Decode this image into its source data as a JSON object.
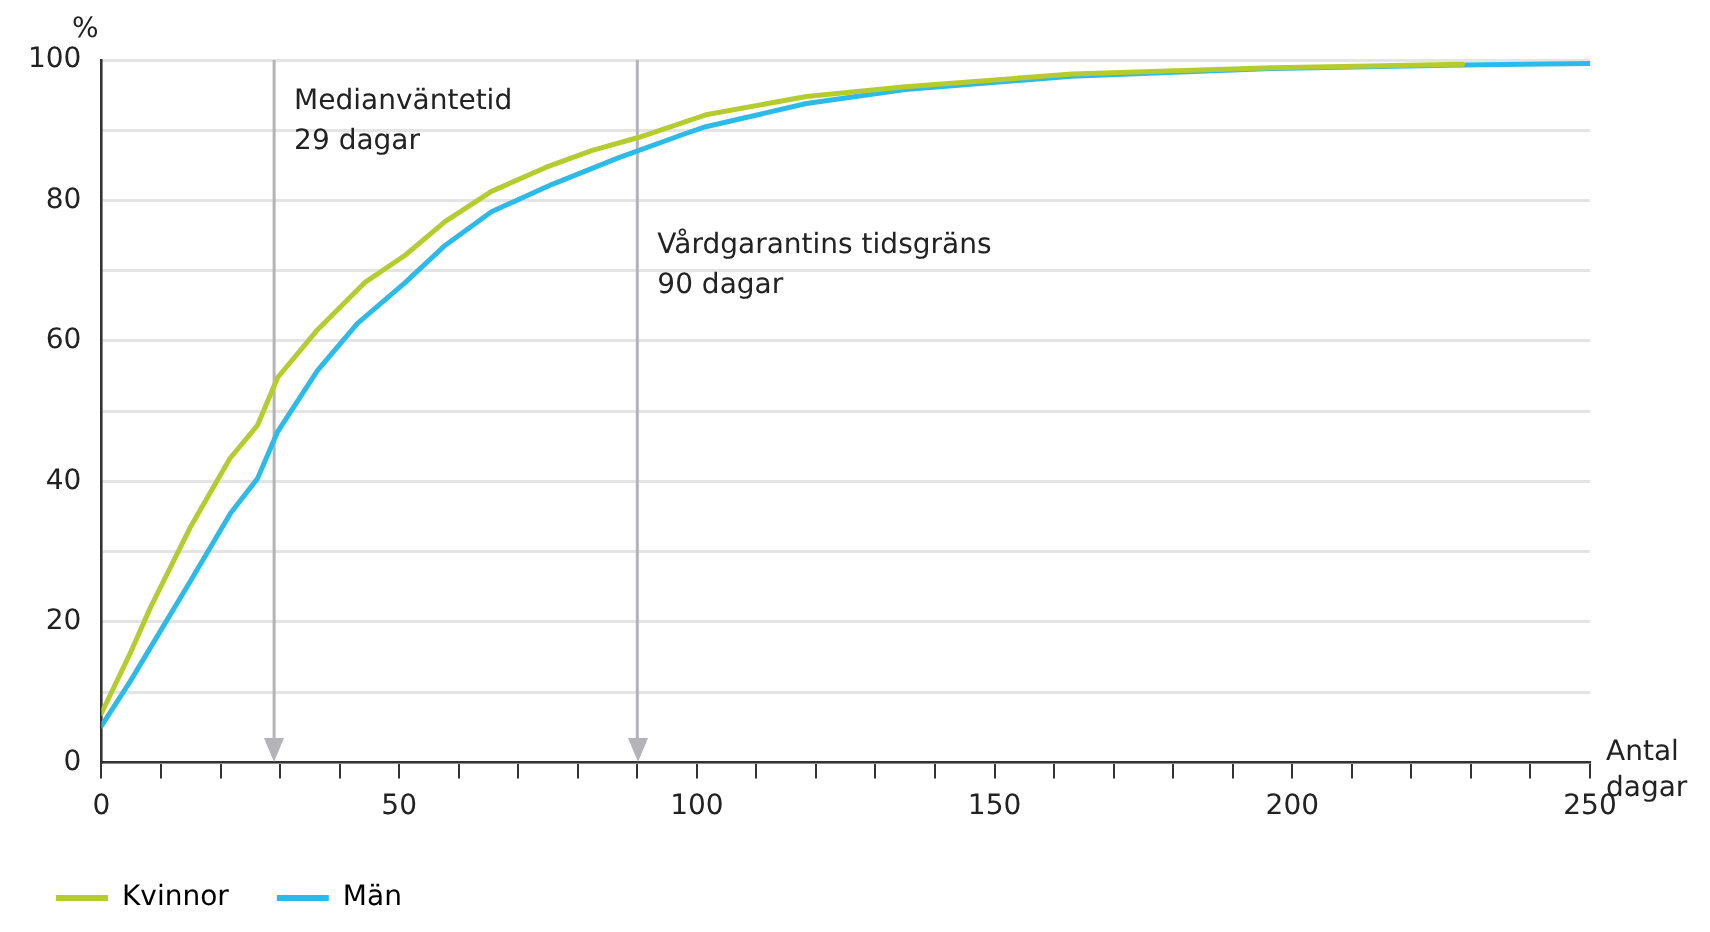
{
  "chart_data": {
    "type": "line",
    "ylabel": "%",
    "xlabel": "Antal\ndagar",
    "xlim": [
      0,
      250
    ],
    "xticks": [
      0,
      {
        "value": 10,
        "label": null
      },
      {
        "value": 20,
        "label": null
      },
      {
        "value": 30,
        "label": null
      },
      {
        "value": 40,
        "label": null
      },
      50,
      {
        "value": 60,
        "label": null
      },
      {
        "value": 70,
        "label": null
      },
      {
        "value": 80,
        "label": null
      },
      {
        "value": 90,
        "label": null
      },
      100,
      {
        "value": 110,
        "label": null
      },
      {
        "value": 120,
        "label": null
      },
      {
        "value": 130,
        "label": null
      },
      {
        "value": 140,
        "label": null
      },
      150,
      {
        "value": 160,
        "label": null
      },
      {
        "value": 170,
        "label": null
      },
      {
        "value": 180,
        "label": null
      },
      {
        "value": 190,
        "label": null
      },
      200,
      {
        "value": 210,
        "label": null
      },
      {
        "value": 220,
        "label": null
      },
      {
        "value": 230,
        "label": null
      },
      {
        "value": 240,
        "label": null
      },
      250
    ],
    "ylim": [
      0,
      100
    ],
    "yticks": [
      0,
      {
        "value": 10,
        "label": null
      },
      20,
      {
        "value": 30,
        "label": null
      },
      40,
      {
        "value": 50,
        "label": null
      },
      60,
      {
        "value": 70,
        "label": null
      },
      80,
      {
        "value": 90,
        "label": null
      },
      100
    ],
    "grid": "y",
    "legend": "bottom left",
    "marker": "none",
    "line_style": "solid",
    "ref_lines": [
      {
        "axis": "x",
        "value": 29,
        "label": "Medianväntetid\n29 dagar",
        "color": "#b4b4b8"
      },
      {
        "axis": "x",
        "value": 90,
        "label": "Vårdgarantins tidsgräns\n90 dagar",
        "color": "#b4b4b8"
      }
    ],
    "series": [
      {
        "name": "Kvinnor",
        "color": "#b5cc2e",
        "x": [
          0,
          4.7,
          8.2,
          15,
          21.6,
          26.2,
          29.6,
          36.3,
          44.2,
          51,
          57.7,
          65.5,
          74.6,
          82.3,
          90.3,
          98,
          101.5,
          118.4,
          135,
          163,
          197,
          228.6
        ],
        "values": [
          7,
          15.3,
          22,
          33.6,
          43.3,
          48,
          54.8,
          61.6,
          68.3,
          72.2,
          77,
          81.3,
          84.7,
          87.1,
          89,
          91.2,
          92.2,
          94.8,
          96.2,
          98,
          98.9,
          99.4
        ]
      },
      {
        "name": "Män",
        "color": "#2cbbe8",
        "x": [
          0,
          4.8,
          8.2,
          15,
          21.7,
          26.2,
          29.6,
          36.3,
          43,
          51,
          57.7,
          65.5,
          75.7,
          86.9,
          98,
          101.5,
          118.4,
          135,
          163,
          197,
          228.6,
          250
        ],
        "values": [
          5.2,
          11.5,
          16.3,
          25.9,
          35.5,
          40.4,
          47.1,
          55.8,
          62.5,
          68.3,
          73.6,
          78.4,
          82.3,
          86.1,
          89.5,
          90.5,
          93.8,
          95.8,
          97.7,
          98.8,
          99.3,
          99.5
        ]
      }
    ]
  }
}
